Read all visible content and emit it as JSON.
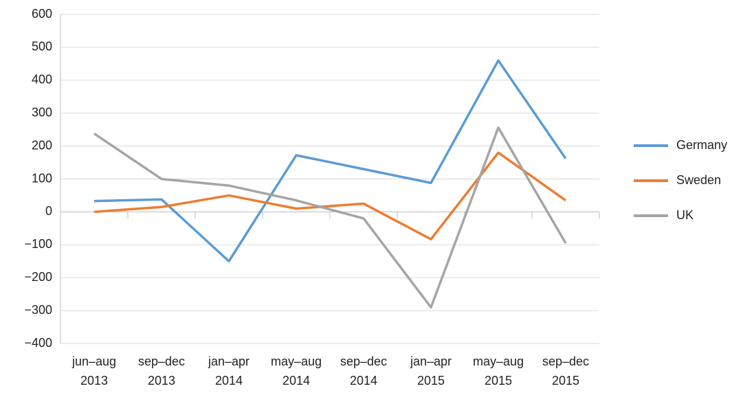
{
  "chart_data": {
    "type": "line",
    "categories": [
      "jun–aug 2013",
      "sep–dec 2013",
      "jan–apr 2014",
      "may–aug 2014",
      "sep–dec 2014",
      "jan–apr 2015",
      "may–aug 2015",
      "sep–dec 2015"
    ],
    "series": [
      {
        "name": "Germany",
        "color": "#5b9bd5",
        "values": [
          33,
          38,
          -150,
          172,
          130,
          88,
          460,
          162
        ]
      },
      {
        "name": "Sweden",
        "color": "#ed7d31",
        "values": [
          0,
          15,
          50,
          10,
          25,
          -83,
          180,
          35
        ]
      },
      {
        "name": "UK",
        "color": "#a5a5a5",
        "values": [
          238,
          100,
          80,
          35,
          -20,
          -290,
          256,
          -95
        ]
      }
    ],
    "ylim": [
      -400,
      600
    ],
    "yticks": [
      {
        "value": -400,
        "label": "−400"
      },
      {
        "value": -300,
        "label": "−300"
      },
      {
        "value": -200,
        "label": "−200"
      },
      {
        "value": -100,
        "label": "−100"
      },
      0,
      100,
      200,
      300,
      400,
      500,
      600
    ],
    "grid": true,
    "legend": "right"
  }
}
